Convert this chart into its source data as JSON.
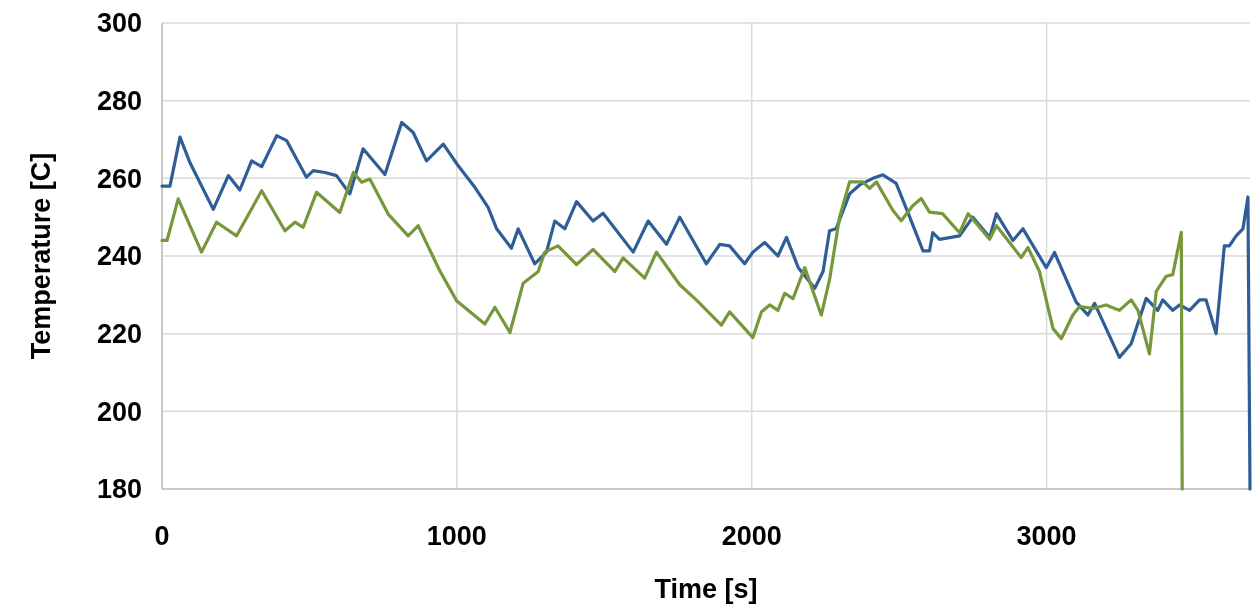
{
  "chart_data": {
    "type": "line",
    "xlabel": "Time [s]",
    "ylabel": "Temperature [C]",
    "xlim": [
      0,
      3690
    ],
    "ylim": [
      180,
      300
    ],
    "xticks": [
      0,
      1000,
      2000,
      3000
    ],
    "yticks": [
      180,
      200,
      220,
      240,
      260,
      280,
      300
    ],
    "grid": true,
    "line_style": "solid",
    "marker": "none",
    "series": [
      {
        "color": "#2f5e97",
        "x": [
          0,
          27,
          61,
          95,
          174,
          225,
          264,
          304,
          338,
          389,
          423,
          490,
          513,
          553,
          592,
          637,
          682,
          756,
          813,
          852,
          897,
          954,
          1004,
          1061,
          1106,
          1135,
          1185,
          1208,
          1264,
          1304,
          1332,
          1366,
          1406,
          1462,
          1496,
          1598,
          1649,
          1711,
          1756,
          1846,
          1892,
          1925,
          1976,
          2004,
          2044,
          2089,
          2118,
          2158,
          2214,
          2242,
          2264,
          2286,
          2332,
          2366,
          2411,
          2445,
          2490,
          2536,
          2581,
          2603,
          2614,
          2637,
          2705,
          2750,
          2807,
          2830,
          2886,
          2920,
          2999,
          3027,
          3100,
          3140,
          3163,
          3247,
          3287,
          3338,
          3377,
          3394,
          3428,
          3451,
          3485,
          3519,
          3541,
          3575,
          3603,
          3620,
          3643,
          3666,
          3683,
          3690
        ],
        "values": [
          258,
          258,
          270.6,
          264,
          252,
          260.7,
          257,
          264.5,
          263,
          271,
          269.7,
          260.3,
          262,
          261.5,
          260.7,
          256,
          267.6,
          261,
          274.4,
          271.8,
          264.5,
          268.8,
          263.3,
          257.7,
          252.5,
          247,
          242,
          247,
          238,
          241,
          249,
          247,
          254,
          249,
          251,
          241,
          249,
          243,
          250,
          238,
          243,
          242.6,
          238,
          241,
          243.5,
          240,
          244.8,
          237,
          231.7,
          236,
          246.5,
          247,
          256,
          258.3,
          260,
          260.9,
          258.7,
          250,
          241.3,
          241.3,
          246,
          244.3,
          245.2,
          250,
          244.8,
          250.9,
          244,
          247,
          237,
          240.9,
          228.2,
          224.8,
          227.8,
          213.9,
          217.4,
          229.1,
          226,
          228.7,
          226,
          227.4,
          226,
          228.7,
          228.7,
          220,
          242.6,
          242.6,
          245.2,
          247,
          255.2,
          180
        ]
      },
      {
        "color": "#77983a",
        "x": [
          0,
          17,
          55,
          134,
          185,
          253,
          338,
          417,
          451,
          479,
          524,
          603,
          649,
          677,
          705,
          767,
          835,
          869,
          942,
          999,
          1095,
          1129,
          1180,
          1225,
          1276,
          1298,
          1343,
          1406,
          1462,
          1536,
          1564,
          1637,
          1677,
          1756,
          1812,
          1897,
          1925,
          2004,
          2033,
          2061,
          2089,
          2112,
          2140,
          2180,
          2236,
          2264,
          2298,
          2332,
          2377,
          2400,
          2423,
          2479,
          2507,
          2547,
          2575,
          2603,
          2647,
          2705,
          2734,
          2807,
          2830,
          2914,
          2937,
          2976,
          3022,
          3050,
          3089,
          3112,
          3157,
          3202,
          3247,
          3287,
          3310,
          3349,
          3372,
          3406,
          3428,
          3457,
          3460
        ],
        "values": [
          244,
          244,
          254.7,
          241,
          248.7,
          245.2,
          256.8,
          246.5,
          248.7,
          247.4,
          256.4,
          251.2,
          261.5,
          259,
          259.8,
          250.8,
          245.2,
          247.8,
          236.2,
          228.5,
          222.5,
          226.8,
          220.3,
          233,
          236,
          241,
          242.6,
          237.8,
          241.7,
          236,
          239.5,
          234.3,
          241,
          232.6,
          228.7,
          222.2,
          225.6,
          219,
          225.6,
          227.4,
          226,
          230.4,
          229,
          237,
          224.8,
          233.9,
          250,
          259.1,
          259.1,
          257.4,
          259.1,
          251.7,
          249.1,
          253,
          254.8,
          251.3,
          250.9,
          246,
          250.9,
          244.3,
          247.8,
          239.6,
          242.2,
          236,
          221.3,
          218.7,
          224.8,
          227,
          226.5,
          227.4,
          226,
          228.7,
          226,
          214.8,
          230.9,
          234.8,
          235.2,
          246.1,
          180
        ]
      }
    ]
  }
}
